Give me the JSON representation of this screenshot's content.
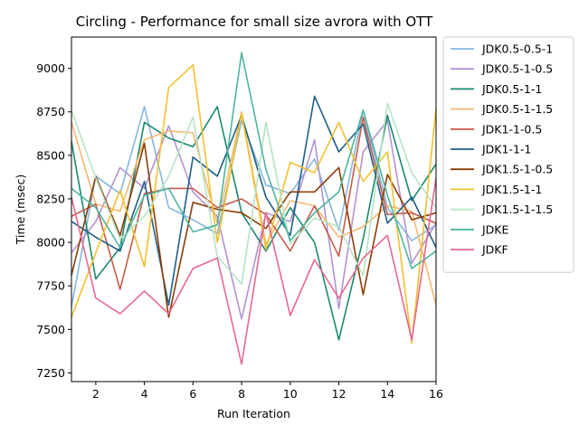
{
  "chart_data": {
    "type": "line",
    "title": "Circling - Performance for small size avrora with OTT",
    "xlabel": "Run Iteration",
    "ylabel": "Time (msec)",
    "xlim": [
      1,
      16
    ],
    "ylim": [
      7200,
      9180
    ],
    "xticks": [
      2,
      4,
      6,
      8,
      10,
      12,
      14,
      16
    ],
    "yticks": [
      7250,
      7500,
      7750,
      8000,
      8250,
      8500,
      8750,
      9000
    ],
    "legend_position": "outside-right",
    "x": [
      1,
      2,
      3,
      4,
      5,
      6,
      7,
      8,
      9,
      10,
      11,
      12,
      13,
      14,
      15,
      16
    ],
    "series": [
      {
        "name": "JDK0.5-0.5-1",
        "color": "#85b6e0",
        "values": [
          7630,
          8380,
          8280,
          8780,
          8200,
          8130,
          8050,
          8700,
          8330,
          8280,
          8480,
          8070,
          8760,
          8200,
          8010,
          8100
        ]
      },
      {
        "name": "JDK0.5-1-0.5",
        "color": "#b493d4",
        "values": [
          7940,
          8120,
          8430,
          8310,
          8670,
          8290,
          8150,
          7560,
          8170,
          8120,
          8590,
          7620,
          8520,
          8700,
          7880,
          8110
        ]
      },
      {
        "name": "JDK0.5-1-1",
        "color": "#1a8a70",
        "values": [
          8580,
          7790,
          7970,
          8690,
          8600,
          8550,
          8780,
          8170,
          7950,
          8200,
          8000,
          7440,
          8020,
          8730,
          8240,
          8450
        ]
      },
      {
        "name": "JDK0.5-1-1.5",
        "color": "#f5b870",
        "values": [
          8690,
          8220,
          8180,
          8590,
          8640,
          8630,
          8110,
          8750,
          7990,
          8240,
          8210,
          8030,
          8090,
          8210,
          8180,
          7640
        ]
      },
      {
        "name": "JDK1-1-0.5",
        "color": "#c95a4a",
        "values": [
          8150,
          8220,
          7730,
          8280,
          8310,
          8310,
          8200,
          8250,
          8160,
          7950,
          8210,
          7920,
          8720,
          8160,
          8170,
          8110
        ]
      },
      {
        "name": "JDK1-1-1",
        "color": "#1f5f88",
        "values": [
          8120,
          8030,
          7950,
          8350,
          7640,
          8490,
          8380,
          8730,
          8260,
          8040,
          8840,
          8520,
          8680,
          8110,
          8260,
          7970
        ]
      },
      {
        "name": "JDK1.5-1-0.5",
        "color": "#8c3d05",
        "values": [
          7810,
          8380,
          8040,
          8570,
          7570,
          8230,
          8190,
          8170,
          8080,
          8290,
          8290,
          8430,
          7700,
          8390,
          8130,
          8170
        ]
      },
      {
        "name": "JDK1.5-1-1",
        "color": "#f2c12e",
        "values": [
          7570,
          7940,
          8300,
          7860,
          8890,
          9020,
          8000,
          8740,
          7960,
          8460,
          8400,
          8690,
          8350,
          8520,
          7420,
          8770
        ]
      },
      {
        "name": "JDK1.5-1-1.5",
        "color": "#b6e3c4",
        "values": [
          8760,
          8370,
          8020,
          8150,
          8380,
          8720,
          7920,
          7760,
          8690,
          7990,
          8140,
          8090,
          7810,
          8800,
          8400,
          8200
        ]
      },
      {
        "name": "JDKE",
        "color": "#4cb6a0",
        "values": [
          8310,
          8200,
          7970,
          8270,
          8310,
          8060,
          8100,
          9090,
          8420,
          8010,
          8170,
          8290,
          8760,
          8270,
          7850,
          7950
        ]
      },
      {
        "name": "JDKF",
        "color": "#e8688f",
        "values": [
          8260,
          7680,
          7590,
          7720,
          7590,
          7850,
          7910,
          7300,
          8170,
          7580,
          7900,
          7680,
          7910,
          8040,
          7440,
          8370
        ]
      }
    ]
  }
}
